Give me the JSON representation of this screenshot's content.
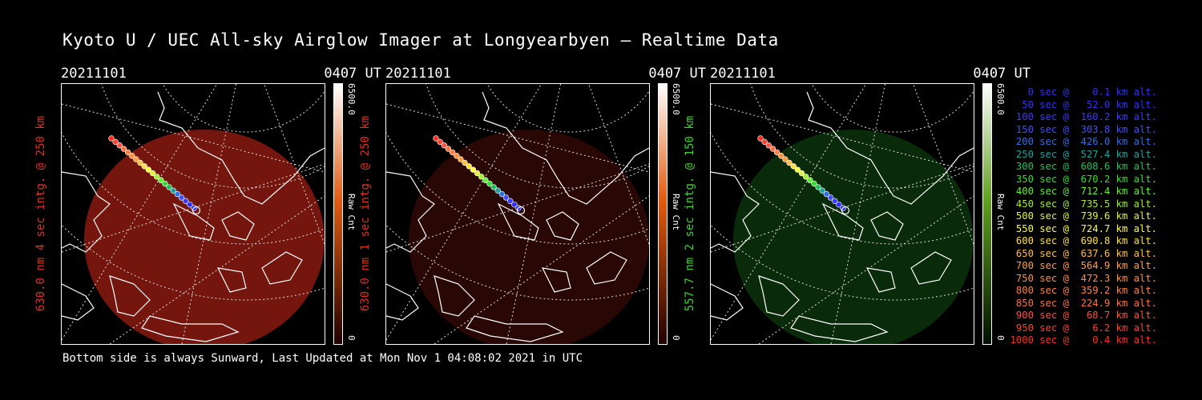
{
  "title": "Kyoto U / UEC All-sky Airglow Imager at Longyearbyen — Realtime Data",
  "footer": "Bottom side is always Sunward, Last Updated at Mon Nov  1 04:08:02 2021 in UTC",
  "panels": [
    {
      "date": "20211101",
      "time": "0407 UT",
      "ylabel": "630.0 nm 4 sec intg. @ 250 km",
      "label_color": "#e03020",
      "cbar_max": "6500.0",
      "cbar_min": "0",
      "cbar_unit": "Raw Cnt",
      "glow_color": "#8a1a10",
      "glow_opacity": 0.85,
      "cbar_top": "#ffffff",
      "cbar_mid": "#e05a10",
      "cbar_bottom": "#200000"
    },
    {
      "date": "20211101",
      "time": "0407 UT",
      "ylabel": "630.0 nm 1 sec intg. @ 250 km",
      "label_color": "#e03020",
      "cbar_max": "6500.0",
      "cbar_min": "0",
      "cbar_unit": "Raw Cnt",
      "glow_color": "#3a0a05",
      "glow_opacity": 0.7,
      "cbar_top": "#ffffff",
      "cbar_mid": "#e05a10",
      "cbar_bottom": "#200000"
    },
    {
      "date": "20211101",
      "time": "0407 UT",
      "ylabel": "557.7 nm 2 sec intg. @ 150 km",
      "label_color": "#40d030",
      "cbar_max": "6500.0",
      "cbar_min": "0",
      "cbar_unit": "Raw Cnt",
      "glow_color": "#0e3a0e",
      "glow_opacity": 0.75,
      "cbar_top": "#ffffff",
      "cbar_mid": "#60a020",
      "cbar_bottom": "#001000"
    }
  ],
  "legend": [
    {
      "text": "   0 sec @    0.1 km alt.",
      "color": "#3030ff"
    },
    {
      "text": "  50 sec @   52.0 km alt.",
      "color": "#3030ff"
    },
    {
      "text": " 100 sec @  160.2 km alt.",
      "color": "#3a3aff"
    },
    {
      "text": " 150 sec @  303.8 km alt.",
      "color": "#4050ff"
    },
    {
      "text": " 200 sec @  426.0 km alt.",
      "color": "#3070e0"
    },
    {
      "text": " 250 sec @  527.4 km alt.",
      "color": "#20a0a0"
    },
    {
      "text": " 300 sec @  608.6 km alt.",
      "color": "#20c060"
    },
    {
      "text": " 350 sec @  670.2 km alt.",
      "color": "#30e030"
    },
    {
      "text": " 400 sec @  712.4 km alt.",
      "color": "#60f030"
    },
    {
      "text": " 450 sec @  735.5 km alt.",
      "color": "#a0f030"
    },
    {
      "text": " 500 sec @  739.6 km alt.",
      "color": "#e0f040"
    },
    {
      "text": " 550 sec @  724.7 km alt.",
      "color": "#ffff40"
    },
    {
      "text": " 600 sec @  690.8 km alt.",
      "color": "#ffe040"
    },
    {
      "text": " 650 sec @  637.6 km alt.",
      "color": "#ffc040"
    },
    {
      "text": " 700 sec @  564.9 km alt.",
      "color": "#ffa040"
    },
    {
      "text": " 750 sec @  472.3 km alt.",
      "color": "#ff9040"
    },
    {
      "text": " 800 sec @  359.2 km alt.",
      "color": "#ff8040"
    },
    {
      "text": " 850 sec @  224.9 km alt.",
      "color": "#ff7040"
    },
    {
      "text": " 900 sec @   68.7 km alt.",
      "color": "#ff5040"
    },
    {
      "text": " 950 sec @    6.2 km alt.",
      "color": "#ff4030"
    },
    {
      "text": "1000 sec @    0.4 km alt.",
      "color": "#ff3020"
    }
  ]
}
